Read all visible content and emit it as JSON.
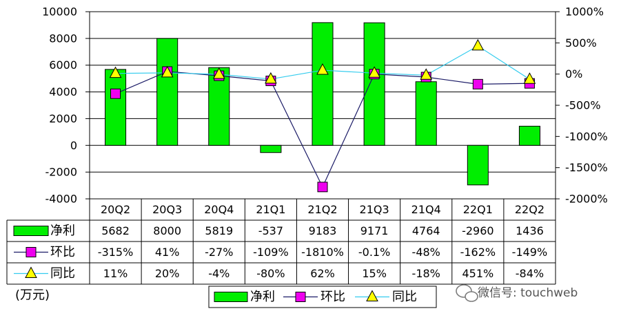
{
  "chart_data": {
    "type": "bar",
    "categories": [
      "20Q2",
      "20Q3",
      "20Q4",
      "21Q1",
      "21Q2",
      "21Q3",
      "21Q4",
      "22Q1",
      "22Q2"
    ],
    "unit_label": "(万元)",
    "y_left": {
      "range": [
        -4000,
        10000
      ],
      "ticks": [
        "10000",
        "8000",
        "6000",
        "4000",
        "2000",
        "0",
        "-2000",
        "-4000"
      ]
    },
    "y_right": {
      "range": [
        -2000,
        1000
      ],
      "ticks": [
        "1000%",
        "500%",
        "0%",
        "-500%",
        "-1000%",
        "-1500%",
        "-2000%"
      ]
    },
    "series": [
      {
        "name": "净利",
        "kind": "bar",
        "axis": "left",
        "color": "#00ee00",
        "values": [
          5682,
          8000,
          5819,
          -537,
          9183,
          9171,
          4764,
          -2960,
          1436
        ],
        "labels": [
          "5682",
          "8000",
          "5819",
          "-537",
          "9183",
          "9171",
          "4764",
          "-2960",
          "1436"
        ]
      },
      {
        "name": "环比",
        "kind": "line",
        "axis": "right",
        "color": "#1a1a66",
        "marker_color": "#ee00ee",
        "values": [
          -315,
          41,
          -27,
          -109,
          -1810,
          -0.1,
          -48,
          -162,
          -149
        ],
        "labels": [
          "-315%",
          "41%",
          "-27%",
          "-109%",
          "-1810%",
          "-0.1%",
          "-48%",
          "-162%",
          "-149%"
        ]
      },
      {
        "name": "同比",
        "kind": "line",
        "axis": "right",
        "color": "#33ccee",
        "marker_color": "#ffff00",
        "values": [
          11,
          20,
          -4,
          -80,
          62,
          15,
          -18,
          451,
          -84
        ],
        "labels": [
          "11%",
          "20%",
          "-4%",
          "-80%",
          "62%",
          "15%",
          "-18%",
          "451%",
          "-84%"
        ]
      }
    ],
    "grid": true,
    "legend_position": "bottom"
  },
  "watermark": {
    "text": "微信号: touchweb",
    "icon": "wechat-icon"
  }
}
